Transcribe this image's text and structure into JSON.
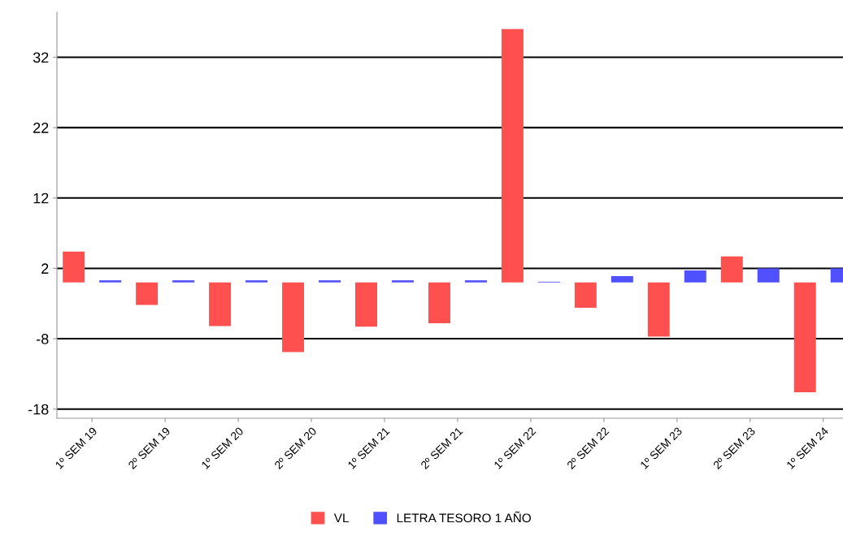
{
  "chart_data": {
    "type": "bar",
    "categories": [
      "1º SEM 19",
      "2º SEM 19",
      "1º SEM 20",
      "2º SEM 20",
      "1º SEM 21",
      "2º SEM 21",
      "1º SEM 22",
      "2º SEM 22",
      "1º SEM 23",
      "2º SEM 23",
      "1º SEM 24"
    ],
    "series": [
      {
        "name": "VL",
        "color": "#ff5050",
        "values": [
          4.4,
          -3.2,
          -6.2,
          -9.9,
          -6.3,
          -5.8,
          36.0,
          -3.6,
          -7.7,
          3.7,
          -15.6
        ]
      },
      {
        "name": "LETRA TESORO 1 AÑO",
        "color": "#5050ff",
        "values": [
          0.3,
          0.3,
          0.3,
          0.3,
          0.3,
          0.3,
          0.1,
          0.9,
          1.7,
          2.0,
          2.0
        ]
      }
    ],
    "ylim": [
      -19.3,
      38.4
    ],
    "yticks": [
      -18,
      -8,
      2,
      12,
      22,
      32
    ],
    "grid": "y",
    "legend": "bottom"
  }
}
